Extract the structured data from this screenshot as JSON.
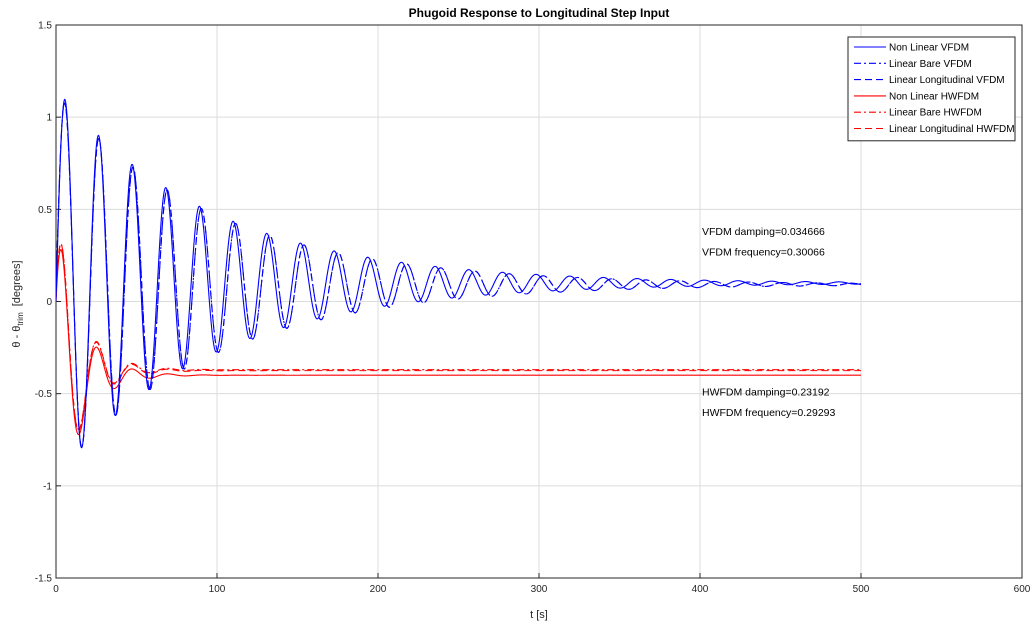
{
  "chart_data": {
    "type": "line",
    "title": "Phugoid Response to Longitudinal Step Input",
    "xlabel": "t [s]",
    "ylabel_parts": {
      "a": "θ - θ",
      "sub": "trim",
      "b": "[degrees]"
    },
    "xlim": [
      0,
      600
    ],
    "ylim": [
      -1.5,
      1.5
    ],
    "xticks": [
      0,
      100,
      200,
      300,
      400,
      500,
      600
    ],
    "yticks": [
      -1.5,
      -1,
      -0.5,
      0,
      0.5,
      1,
      1.5
    ],
    "xtick_labels": [
      "0",
      "100",
      "200",
      "300",
      "400",
      "500",
      "600"
    ],
    "ytick_labels": [
      "-1.5",
      "-1",
      "-0.5",
      "0",
      "0.5",
      "1",
      "1.5"
    ],
    "grid": true,
    "legend_position": "top-right",
    "t_end": 500,
    "series": [
      {
        "name": "Non Linear VFDM",
        "color": "#0000ff",
        "dash": "solid",
        "model": {
          "ss": 0.1,
          "amp": 1.05,
          "zeta": 0.034666,
          "wn": 0.30066,
          "phase": 0
        }
      },
      {
        "name": "Linear Bare VFDM",
        "color": "#0000ff",
        "dash": "dashdot",
        "model": {
          "ss": 0.093,
          "amp": 1.04,
          "zeta": 0.034666,
          "wn": 0.296,
          "phase": 0.05
        }
      },
      {
        "name": "Linear Longitudinal VFDM",
        "color": "#0000ff",
        "dash": "dashed",
        "model": {
          "ss": 0.093,
          "amp": 1.04,
          "zeta": 0.034666,
          "wn": 0.296,
          "phase": 0.05
        }
      },
      {
        "name": "Non Linear HWFDM",
        "color": "#ff0000",
        "dash": "solid",
        "model": {
          "ss": -0.4,
          "amp": 0.76,
          "zeta": 0.23192,
          "wn": 0.29293,
          "phase": 0
        }
      },
      {
        "name": "Linear Bare HWFDM",
        "color": "#ff0000",
        "dash": "dashdot",
        "model": {
          "ss": -0.37,
          "amp": 0.77,
          "zeta": 0.23192,
          "wn": 0.29293,
          "phase": 0.03
        }
      },
      {
        "name": "Linear Longitudinal HWFDM",
        "color": "#ff0000",
        "dash": "dashed",
        "model": {
          "ss": -0.375,
          "amp": 0.77,
          "zeta": 0.23192,
          "wn": 0.29293,
          "phase": 0.03
        }
      }
    ],
    "annotations": [
      {
        "text": "VFDM damping=0.034666",
        "x": 400,
        "y": 0.36
      },
      {
        "text": "VFDM frequency=0.30066",
        "x": 400,
        "y": 0.25
      },
      {
        "text": "HWFDM damping=0.23192",
        "x": 400,
        "y": -0.51
      },
      {
        "text": "HWFDM frequency=0.29293",
        "x": 400,
        "y": -0.62
      }
    ]
  }
}
